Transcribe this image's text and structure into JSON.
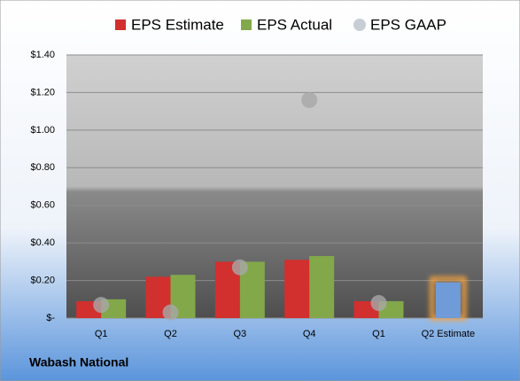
{
  "chart_data": {
    "type": "bar",
    "footer": "Wabash National",
    "categories": [
      "Q1",
      "Q2",
      "Q3",
      "Q4",
      "Q1",
      "Q2 Estimate"
    ],
    "series": [
      {
        "name": "EPS Estimate",
        "color": "#d22f2f",
        "values": [
          0.09,
          0.22,
          0.3,
          0.31,
          0.09,
          0.19
        ],
        "point_colors": [
          null,
          null,
          null,
          null,
          null,
          "#6f9bd8"
        ]
      },
      {
        "name": "EPS Actual",
        "color": "#82a84a",
        "values": [
          0.1,
          0.23,
          0.3,
          0.33,
          0.09,
          null
        ]
      },
      {
        "name": "EPS GAAP",
        "color": "#a8a8a8",
        "marker": "circle",
        "values": [
          0.07,
          0.03,
          0.27,
          1.16,
          0.08,
          null
        ]
      }
    ],
    "ylim": [
      0,
      1.4
    ],
    "yticks": [
      {
        "value": 0,
        "label": "$-"
      },
      {
        "value": 0.2,
        "label": "$0.20"
      },
      {
        "value": 0.4,
        "label": "$0.40"
      },
      {
        "value": 0.6,
        "label": "$0.60"
      },
      {
        "value": 0.8,
        "label": "$0.80"
      },
      {
        "value": 1.0,
        "label": "$1.00"
      },
      {
        "value": 1.2,
        "label": "$1.20"
      },
      {
        "value": 1.4,
        "label": "$1.40"
      }
    ],
    "grid": true
  }
}
